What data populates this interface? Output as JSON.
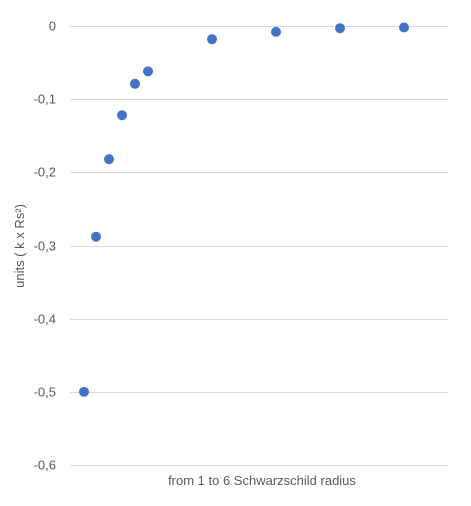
{
  "chart_data": {
    "type": "scatter",
    "title": "",
    "xlabel": "from 1 to 6 Schwarzschild radius",
    "ylabel": "units ( k x Rs²)",
    "ylim": [
      -0.6,
      0
    ],
    "yticks": [
      0,
      -0.1,
      -0.2,
      -0.3,
      -0.4,
      -0.5,
      -0.6
    ],
    "ytick_labels": [
      "0",
      "-0,1",
      "-0,2",
      "-0,3",
      "-0,4",
      "-0,5",
      "-0,6"
    ],
    "grid": true,
    "series": [
      {
        "color": "#4472c4",
        "y": [
          -0.5,
          -0.288,
          -0.182,
          -0.122,
          -0.079,
          -0.062,
          -0.018,
          -0.008,
          -0.003,
          -0.002
        ]
      }
    ]
  }
}
